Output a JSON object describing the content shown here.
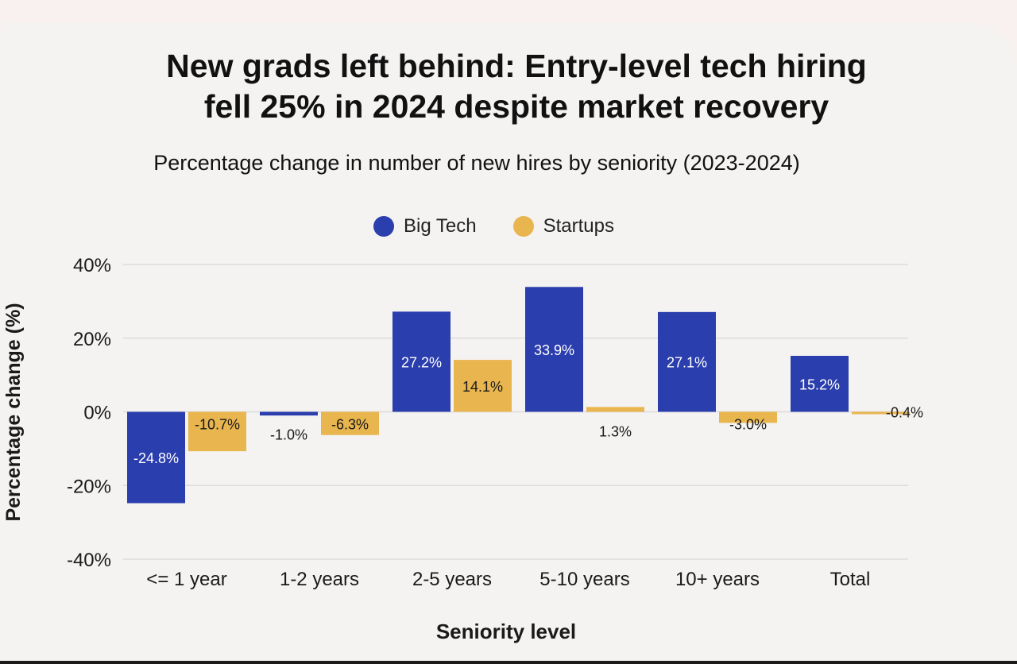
{
  "colors": {
    "big_tech": "#2b3ead",
    "startups": "#e8b54e",
    "grid": "#dcdcdc",
    "text": "#1a1a1a"
  },
  "chart_data": {
    "type": "bar",
    "title_lines": [
      "New grads left behind: Entry-level tech hiring",
      "fell 25% in 2024 despite market recovery"
    ],
    "subtitle": "Percentage change in number of new hires by seniority (2023-2024)",
    "xlabel": "Seniority level",
    "ylabel": "Percentage change (%)",
    "categories": [
      "<= 1 year",
      "1-2 years",
      "2-5 years",
      "5-10 years",
      "10+ years",
      "Total"
    ],
    "series": [
      {
        "name": "Big Tech",
        "values": [
          -24.8,
          -1.0,
          27.2,
          33.9,
          27.1,
          15.2
        ],
        "labels": [
          "-24.8%",
          "-1.0%",
          "27.2%",
          "33.9%",
          "27.1%",
          "15.2%"
        ]
      },
      {
        "name": "Startups",
        "values": [
          -10.7,
          -6.3,
          14.1,
          1.3,
          -3.0,
          -0.4
        ],
        "labels": [
          "-10.7%",
          "-6.3%",
          "14.1%",
          "1.3%",
          "-3.0%",
          "-0.4%"
        ]
      }
    ],
    "ylim": [
      -40,
      40
    ],
    "yticks": [
      40,
      20,
      0,
      -20,
      -40
    ],
    "ytick_labels": [
      "40%",
      "20%",
      "0%",
      "-20%",
      "-40%"
    ],
    "grid": true,
    "legend_position": "top-center"
  }
}
